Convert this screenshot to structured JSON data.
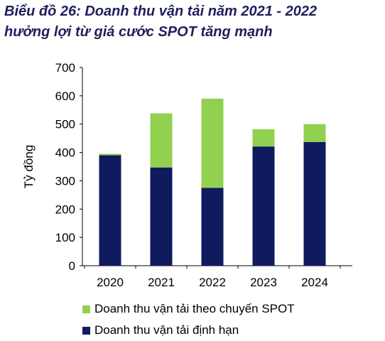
{
  "chart_data": {
    "type": "bar",
    "stacked": true,
    "title_lines": [
      "Biểu đồ 26: Doanh thu vận tải năm 2021 - 2022",
      "hưởng lợi từ giá cước SPOT tăng mạnh"
    ],
    "ylabel": "Tỷ đồng",
    "xlabel": "",
    "ylim": [
      0,
      700
    ],
    "yticks": [
      0,
      100,
      200,
      300,
      400,
      500,
      600,
      700
    ],
    "categories": [
      "2020",
      "2021",
      "2022",
      "2023",
      "2024"
    ],
    "series": [
      {
        "name": "Doanh thu vận tải định hạn",
        "color": "#0f1a5f",
        "values": [
          390,
          347,
          275,
          421,
          437
        ]
      },
      {
        "name": "Doanh thu vận tải theo chuyến SPOT",
        "color": "#92d050",
        "values": [
          5,
          191,
          315,
          61,
          63
        ]
      }
    ],
    "grid": false,
    "legend_position": "bottom-left"
  }
}
